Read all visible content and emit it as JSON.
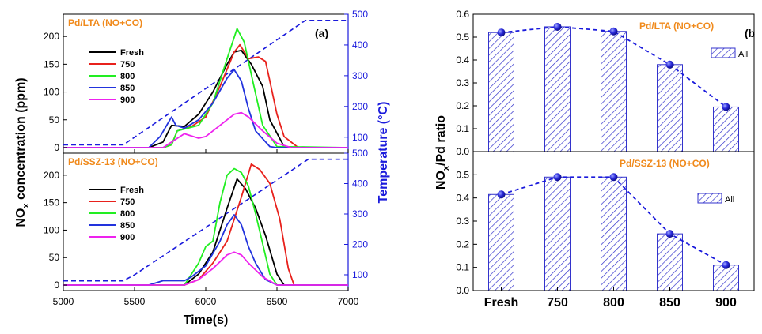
{
  "chart_data": [
    {
      "panel": "(a)",
      "type": "line",
      "xlabel": "Time(s)",
      "ylabel_left": "NO",
      "ylabel_left_sub": "x",
      "ylabel_left_tail": " concentration (ppm)",
      "ylabel_right": "Temperature (°C)",
      "xlim": [
        5000,
        7000
      ],
      "x_ticks": [
        "5000",
        "5500",
        "6000",
        "6500",
        "7000"
      ],
      "colors": {
        "Fresh": "#000000",
        "750": "#e8211c",
        "800": "#22ee22",
        "850": "#2233dd",
        "900": "#ee22ee",
        "temperature": "#1a1adc"
      },
      "subplots": [
        {
          "title": "Pd/LTA (NO+CO)",
          "ylim": [
            -10,
            240
          ],
          "y_ticks": [
            0,
            50,
            100,
            150,
            200
          ],
          "y2lim": [
            48,
            500
          ],
          "y2_ticks": [
            100,
            200,
            300,
            400,
            500
          ],
          "series": [
            {
              "name": "Fresh",
              "x": [
                5000,
                5600,
                5700,
                5760,
                5850,
                5950,
                6050,
                6150,
                6200,
                6250,
                6320,
                6400,
                6450,
                6550,
                6600,
                7000
              ],
              "values": [
                0,
                0,
                10,
                40,
                38,
                60,
                100,
                150,
                172,
                175,
                150,
                110,
                50,
                2,
                0,
                0
              ]
            },
            {
              "name": "750",
              "x": [
                5000,
                5700,
                5760,
                5800,
                5900,
                6000,
                6100,
                6200,
                6240,
                6300,
                6370,
                6420,
                6450,
                6500,
                6550,
                6650,
                7000
              ],
              "values": [
                0,
                0,
                5,
                30,
                38,
                55,
                110,
                172,
                185,
                160,
                163,
                155,
                120,
                60,
                20,
                0,
                0
              ]
            },
            {
              "name": "800",
              "x": [
                5000,
                5700,
                5760,
                5800,
                5950,
                6050,
                6150,
                6220,
                6270,
                6330,
                6400,
                6500,
                7000
              ],
              "values": [
                0,
                0,
                5,
                30,
                40,
                80,
                160,
                214,
                190,
                120,
                40,
                2,
                0
              ]
            },
            {
              "name": "850",
              "x": [
                5000,
                5600,
                5680,
                5760,
                5790,
                5850,
                5950,
                6050,
                6150,
                6200,
                6250,
                6300,
                6350,
                6450,
                6500,
                7000
              ],
              "values": [
                0,
                0,
                20,
                55,
                40,
                35,
                50,
                80,
                125,
                140,
                120,
                70,
                30,
                2,
                0,
                0
              ]
            },
            {
              "name": "900",
              "x": [
                5000,
                5700,
                5760,
                5850,
                5950,
                6000,
                6100,
                6200,
                6250,
                6300,
                6400,
                6500,
                6600,
                7000
              ],
              "values": [
                0,
                0,
                10,
                25,
                17,
                20,
                40,
                60,
                63,
                55,
                30,
                8,
                0,
                0
              ]
            }
          ],
          "temperature": {
            "x": [
              5000,
              5420,
              5500,
              6700,
              7000
            ],
            "values": [
              75,
              75,
              100,
              480,
              480
            ]
          }
        },
        {
          "title": "Pd/SSZ-13 (NO+CO)",
          "ylim": [
            -10,
            240
          ],
          "y_ticks": [
            0,
            50,
            100,
            150,
            200
          ],
          "y2lim": [
            48,
            500
          ],
          "y2_ticks": [
            100,
            200,
            300,
            400,
            500
          ],
          "series": [
            {
              "name": "Fresh",
              "x": [
                5000,
                5850,
                5950,
                6050,
                6150,
                6220,
                6280,
                6350,
                6420,
                6500,
                6550,
                7000
              ],
              "values": [
                0,
                0,
                20,
                60,
                140,
                193,
                175,
                140,
                90,
                20,
                0,
                0
              ]
            },
            {
              "name": "750",
              "x": [
                5000,
                5850,
                5950,
                6050,
                6150,
                6250,
                6320,
                6380,
                6450,
                6520,
                6580,
                6620,
                7000
              ],
              "values": [
                0,
                0,
                10,
                40,
                80,
                160,
                220,
                210,
                185,
                120,
                30,
                0,
                0
              ]
            },
            {
              "name": "800",
              "x": [
                5000,
                5850,
                5950,
                6000,
                6050,
                6100,
                6150,
                6200,
                6250,
                6300,
                6350,
                6450,
                6500,
                7000
              ],
              "values": [
                0,
                0,
                40,
                70,
                80,
                150,
                200,
                212,
                205,
                180,
                130,
                20,
                0,
                0
              ]
            },
            {
              "name": "850",
              "x": [
                5000,
                5600,
                5700,
                5850,
                5900,
                6000,
                6100,
                6150,
                6200,
                6250,
                6300,
                6350,
                6420,
                6500,
                7000
              ],
              "values": [
                0,
                0,
                8,
                8,
                15,
                35,
                80,
                110,
                128,
                110,
                70,
                40,
                10,
                0,
                0
              ]
            },
            {
              "name": "900",
              "x": [
                5000,
                5850,
                5950,
                6050,
                6150,
                6200,
                6250,
                6300,
                6400,
                6500,
                7000
              ],
              "values": [
                0,
                0,
                10,
                30,
                55,
                60,
                55,
                40,
                15,
                0,
                0
              ]
            }
          ],
          "temperature": {
            "x": [
              5000,
              5420,
              5500,
              6720,
              7000
            ],
            "values": [
              80,
              80,
              100,
              480,
              480
            ]
          }
        }
      ]
    },
    {
      "panel": "(b",
      "type": "bar",
      "ylabel": "NO",
      "ylabel_sub": "x",
      "ylabel_tail": "/Pd ratio",
      "categories": [
        "Fresh",
        "750",
        "800",
        "850",
        "900"
      ],
      "bar_color": "#3333cc",
      "line_color": "#1a1adc",
      "subplots": [
        {
          "title": "Pd/LTA (NO+CO)",
          "ylim": [
            0,
            0.6
          ],
          "y_ticks": [
            "0.0",
            "0.1",
            "0.2",
            "0.3",
            "0.4",
            "0.5",
            "0.6"
          ],
          "legend": "All",
          "series": [
            {
              "name": "All",
              "values": [
                0.52,
                0.545,
                0.525,
                0.38,
                0.195
              ]
            }
          ]
        },
        {
          "title": "Pd/SSZ-13 (NO+CO)",
          "ylim": [
            0,
            0.6
          ],
          "y_ticks": [
            "0.0",
            "0.1",
            "0.2",
            "0.3",
            "0.4",
            "0.5"
          ],
          "legend": "All",
          "series": [
            {
              "name": "All",
              "values": [
                0.415,
                0.49,
                0.49,
                0.245,
                0.11
              ]
            }
          ]
        }
      ]
    }
  ]
}
